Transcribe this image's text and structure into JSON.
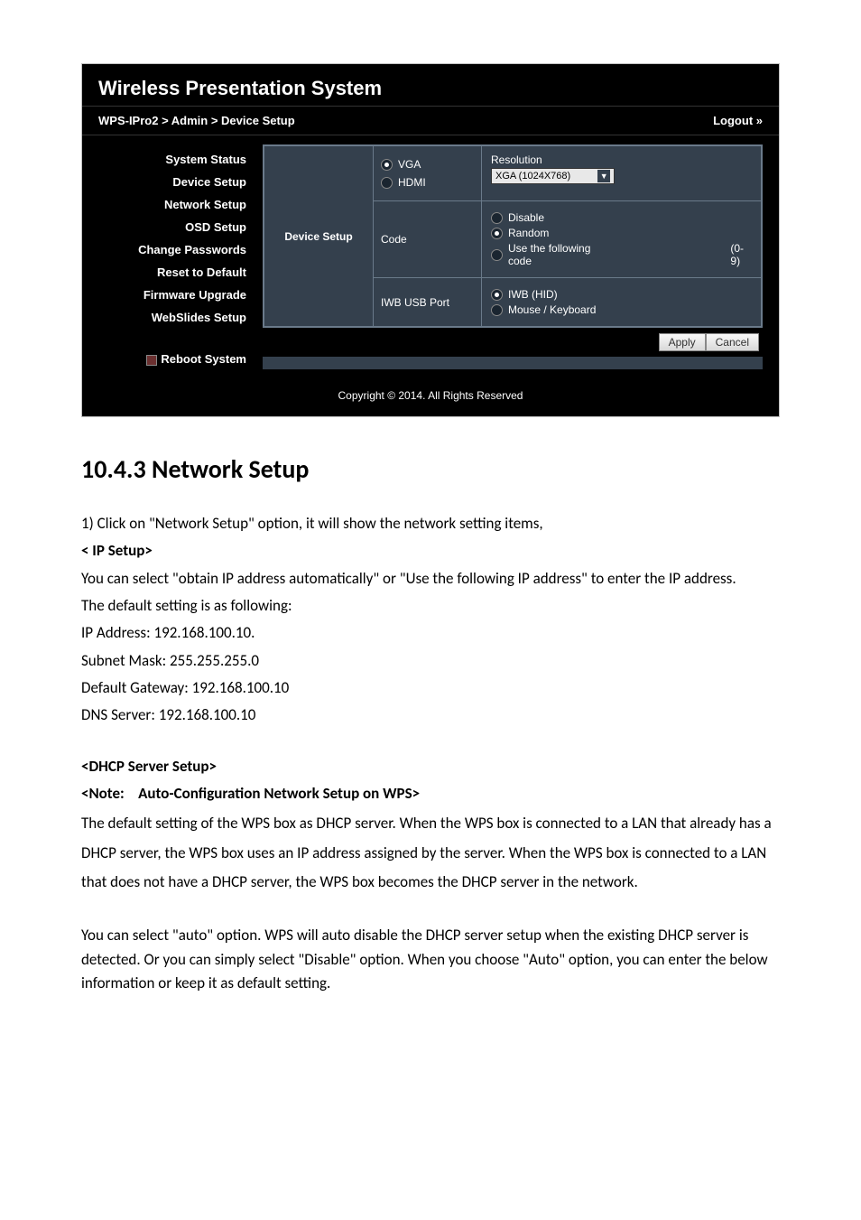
{
  "panel": {
    "title": "Wireless Presentation System",
    "breadcrumb": "WPS-IPro2 > Admin > Device Setup",
    "logout": "Logout »",
    "copyright": "Copyright © 2014. All Rights Reserved"
  },
  "sidebar": {
    "items": [
      "System Status",
      "Device Setup",
      "Network Setup",
      "OSD Setup",
      "Change Passwords",
      "Reset to Default",
      "Firmware Upgrade",
      "WebSlides Setup"
    ],
    "reboot": "Reboot System"
  },
  "setup": {
    "section_label": "Device Setup",
    "row1": {
      "opt1": "VGA",
      "opt2": "HDMI",
      "resolution_label": "Resolution",
      "resolution_value": "XGA (1024X768)"
    },
    "row2": {
      "key": "Code",
      "opt1": "Disable",
      "opt2": "Random",
      "opt3": "Use the following code",
      "range": "(0-9)"
    },
    "row3": {
      "key": "IWB USB Port",
      "opt1": "IWB (HID)",
      "opt2": "Mouse / Keyboard"
    },
    "buttons": {
      "apply": "Apply",
      "cancel": "Cancel"
    }
  },
  "doc": {
    "heading": "10.4.3  Network Setup",
    "line1": "1)  Click on \"Network Setup\" option, it will show the network setting items,",
    "ip_setup": "< IP Setup>",
    "ip_body1": "You can select \"obtain IP address automatically\" or \"Use the following IP address\" to enter the IP address.",
    "default_label": "The default setting is as following:",
    "ip_addr": "IP Address: 192.168.100.10.",
    "subnet": "Subnet Mask: 255.255.255.0",
    "gateway": "Default Gateway: 192.168.100.10",
    "dns": "DNS Server: 192.168.100.10",
    "dhcp": "<DHCP Server Setup>",
    "note": "<Note:    Auto-Configuration Network Setup on WPS>",
    "dhcp_body": "The default setting of the WPS box as DHCP server. When the WPS box is connected to a LAN that already has a DHCP server, the WPS box uses an IP address assigned by the server. When the WPS box is connected to a LAN that does not have a DHCP server, the WPS box becomes the DHCP server in the network.",
    "auto_body": "You can select \"auto\" option. WPS will auto disable the DHCP server setup when the existing DHCP server is detected. Or you can simply select \"Disable\" option. When you choose \"Auto\" option, you can enter the below information or keep it as default setting."
  }
}
